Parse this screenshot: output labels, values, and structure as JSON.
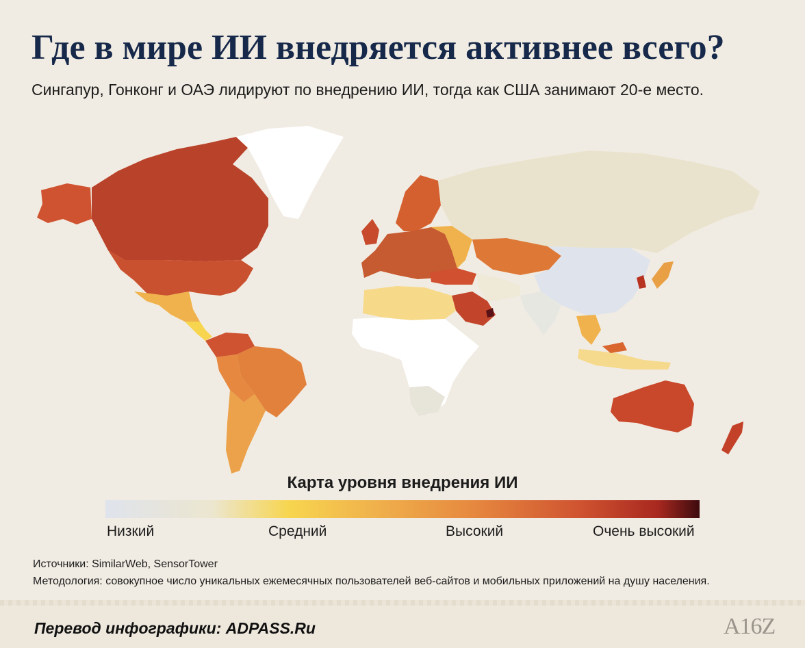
{
  "header": {
    "title": "Где в мире ИИ внедряется активнее всего?",
    "subtitle": "Сингапур, Гонконг и ОАЭ лидируют по внедрению ИИ, тогда как США занимают 20-е место."
  },
  "map": {
    "legend_title": "Карта уровня внедрения ИИ",
    "scale_labels": [
      "Низкий",
      "Средний",
      "Высокий",
      "Очень высокий"
    ],
    "colors": {
      "no_data": "#ffffff",
      "low": "#dfe3ec",
      "low_mid": "#ece6cf",
      "medium": "#f7d54e",
      "medium_high": "#f0b24c",
      "high": "#e6883f",
      "high_strong": "#cf5330",
      "very_high": "#a8281f",
      "max": "#3d0b0e"
    }
  },
  "footer": {
    "sources": "Источники: SimilarWeb, SensorTower",
    "methodology": "Методология: совокупное число уникальных ежемесячных пользователей веб-сайтов и мобильных приложений на душу населения.",
    "translation_credit": "Перевод инфографики: ADPASS.Ru",
    "logo": "A16Z"
  }
}
